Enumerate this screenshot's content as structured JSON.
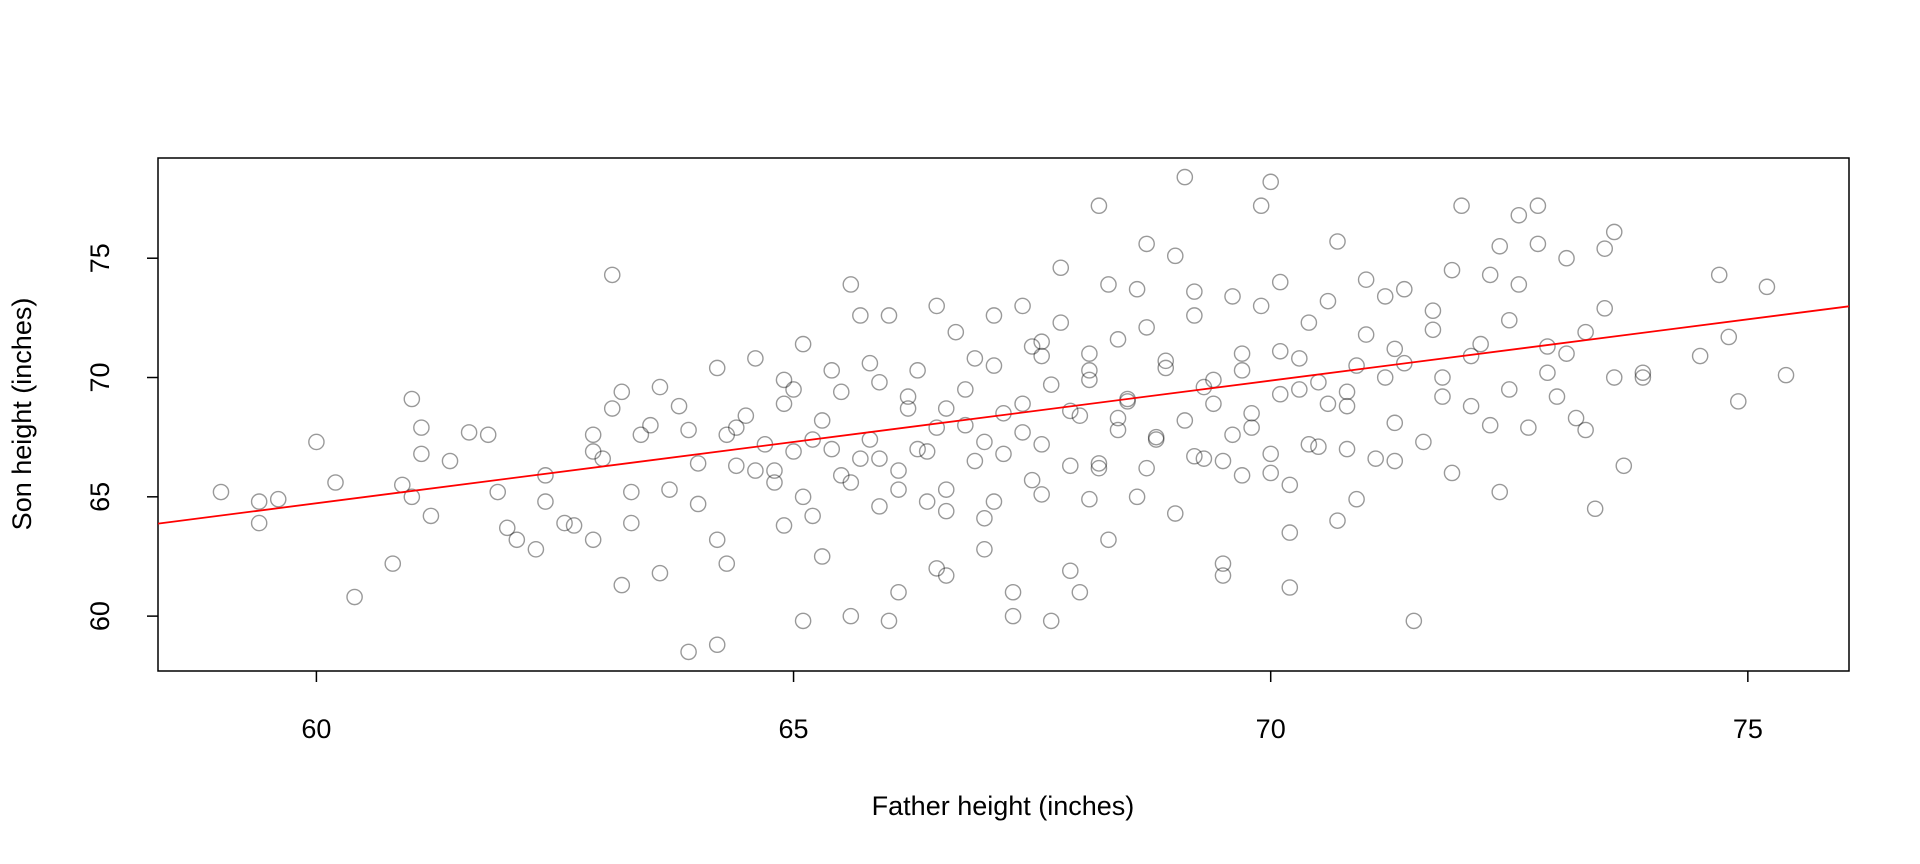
{
  "chart_data": {
    "type": "scatter",
    "x_label": "Father height (inches)",
    "y_label": "Son height (inches)",
    "x": [
      59.0,
      59.4,
      59.4,
      59.6,
      60.0,
      60.2,
      60.4,
      60.8,
      60.9,
      61.0,
      61.0,
      61.1,
      61.1,
      61.2,
      61.4,
      61.6,
      61.8,
      61.9,
      62.0,
      62.1,
      62.3,
      62.4,
      62.4,
      62.6,
      62.7,
      62.9,
      62.9,
      62.9,
      63.0,
      63.1,
      63.2,
      63.2,
      63.3,
      63.3,
      63.4,
      63.5,
      63.6,
      63.6,
      63.7,
      63.1,
      63.8,
      63.9,
      64.0,
      64.0,
      64.2,
      64.2,
      64.2,
      64.3,
      64.4,
      64.5,
      64.6,
      64.7,
      64.8,
      64.9,
      64.9,
      65.0,
      65.1,
      65.2,
      65.3,
      65.4,
      65.5,
      65.5,
      65.6,
      65.7,
      65.8,
      65.9,
      65.9,
      66.0,
      66.1,
      66.2,
      66.3,
      66.4,
      66.5,
      66.5,
      66.6,
      66.7,
      66.8,
      66.9,
      67.0,
      67.0,
      67.1,
      67.2,
      67.3,
      67.4,
      67.5,
      67.5,
      67.6,
      67.7,
      67.8,
      67.9,
      68.0,
      68.0,
      68.1,
      68.2,
      68.3,
      68.4,
      68.4,
      68.5,
      68.6,
      68.7,
      68.8,
      68.9,
      69.0,
      69.1,
      69.2,
      69.3,
      69.4,
      69.5,
      69.6,
      69.7,
      69.8,
      69.9,
      70.0,
      70.1,
      70.2,
      70.3,
      70.4,
      70.5,
      70.6,
      70.7,
      70.8,
      70.9,
      71.0,
      71.1,
      71.2,
      71.3,
      71.4,
      71.5,
      71.6,
      71.7,
      71.8,
      71.9,
      72.0,
      72.1,
      72.2,
      72.3,
      72.4,
      72.5,
      72.6,
      72.7,
      72.8,
      72.9,
      73.0,
      73.1,
      73.2,
      73.3,
      73.4,
      73.5,
      73.6,
      73.7,
      69.1,
      70.0,
      69.9,
      68.2,
      72.8,
      72.6,
      73.5,
      73.6,
      74.7,
      75.2,
      74.5,
      74.8,
      74.9,
      75.4,
      73.9,
      73.9,
      73.3,
      73.1,
      70.2,
      69.5,
      67.3,
      67.7,
      67.9,
      64.3,
      63.9,
      65.1,
      65.6,
      66.1,
      66.6,
      67.0,
      65.0,
      65.3,
      65.8,
      66.2,
      66.6,
      67.2,
      67.6,
      68.1,
      68.5,
      68.9,
      69.3,
      69.7,
      70.1,
      70.5,
      70.9,
      71.3,
      71.7,
      72.1,
      72.5,
      72.9,
      64.8,
      65.2,
      65.7,
      66.3,
      66.8,
      67.4,
      67.9,
      68.4,
      68.8,
      69.4,
      69.8,
      70.3,
      70.8,
      71.2,
      71.8,
      72.3,
      64.4,
      64.9,
      65.4,
      65.9,
      66.4,
      66.9,
      67.4,
      67.8,
      68.3,
      68.7,
      69.2,
      69.6,
      70.1,
      70.6,
      71.0,
      71.4,
      71.9,
      72.4,
      66.0,
      66.5,
      67.1,
      67.6,
      68.1,
      68.6,
      69.0,
      69.5,
      70.0,
      70.4,
      70.8,
      71.3,
      68.2,
      68.7,
      69.2,
      69.7,
      70.2,
      70.7,
      65.6,
      66.1,
      66.6,
      67.1,
      67.6,
      68.1,
      64.6,
      65.1
    ],
    "values": [
      65.2,
      64.8,
      63.9,
      64.9,
      67.3,
      65.6,
      60.8,
      62.2,
      65.5,
      69.1,
      65.0,
      67.9,
      66.8,
      64.2,
      66.5,
      67.7,
      67.6,
      65.2,
      63.7,
      63.2,
      62.8,
      65.9,
      64.8,
      63.9,
      63.8,
      67.6,
      66.9,
      63.2,
      66.6,
      68.7,
      69.4,
      61.3,
      65.2,
      63.9,
      67.6,
      68.0,
      69.6,
      61.8,
      65.3,
      74.3,
      68.8,
      67.8,
      66.4,
      64.7,
      70.4,
      63.2,
      58.8,
      67.6,
      66.3,
      68.4,
      70.8,
      67.2,
      65.6,
      63.8,
      68.9,
      66.9,
      71.4,
      64.2,
      62.5,
      67.0,
      69.4,
      65.9,
      73.9,
      72.6,
      67.4,
      64.6,
      69.8,
      59.8,
      66.1,
      68.7,
      70.3,
      64.8,
      62.0,
      67.9,
      65.3,
      71.9,
      69.5,
      66.5,
      67.3,
      64.1,
      70.5,
      66.8,
      60.0,
      68.9,
      71.3,
      65.7,
      67.2,
      69.7,
      74.6,
      66.3,
      68.4,
      61.0,
      70.3,
      66.2,
      63.2,
      71.6,
      67.8,
      69.0,
      65.0,
      72.1,
      67.5,
      70.7,
      64.3,
      68.2,
      72.6,
      66.6,
      69.9,
      61.7,
      67.6,
      71.0,
      68.5,
      73.0,
      66.0,
      69.3,
      63.5,
      70.8,
      72.3,
      67.1,
      68.9,
      75.7,
      69.4,
      64.9,
      71.8,
      66.6,
      73.4,
      68.1,
      70.6,
      59.8,
      67.3,
      72.8,
      70.0,
      66.0,
      77.2,
      68.8,
      71.4,
      74.3,
      65.2,
      69.5,
      73.9,
      67.9,
      75.6,
      70.2,
      69.2,
      75.0,
      68.3,
      71.9,
      64.5,
      72.9,
      70.0,
      66.3,
      78.4,
      78.2,
      77.2,
      77.2,
      77.2,
      76.8,
      75.4,
      76.1,
      74.3,
      73.8,
      70.9,
      71.7,
      69.0,
      70.1,
      70.2,
      70.0,
      67.8,
      71.0,
      61.2,
      62.2,
      61.0,
      59.8,
      61.9,
      62.2,
      58.5,
      59.8,
      60.0,
      61.0,
      61.7,
      62.8,
      69.5,
      68.2,
      70.6,
      69.2,
      68.7,
      68.5,
      70.9,
      69.9,
      69.1,
      70.4,
      69.6,
      70.3,
      71.1,
      69.8,
      70.5,
      71.2,
      72.0,
      70.9,
      72.4,
      71.3,
      66.1,
      67.4,
      66.6,
      67.0,
      68.0,
      67.7,
      68.6,
      68.3,
      67.4,
      68.9,
      67.9,
      69.5,
      68.8,
      70.0,
      69.2,
      68.0,
      67.9,
      69.9,
      70.3,
      66.6,
      66.9,
      70.8,
      73.0,
      72.3,
      73.9,
      75.6,
      73.6,
      73.4,
      74.0,
      73.2,
      74.1,
      73.7,
      74.5,
      75.5,
      72.6,
      73.0,
      72.6,
      71.5,
      71.0,
      73.7,
      75.1,
      66.5,
      66.8,
      67.2,
      67.0,
      66.5,
      66.4,
      66.2,
      66.7,
      65.9,
      65.5,
      64.0,
      65.6,
      65.3,
      64.4,
      64.8,
      65.1,
      64.9,
      66.1,
      65.0
    ],
    "color": "#000000",
    "opacity": 0.4,
    "xlim": [
      58.34,
      76.06
    ],
    "ylim": [
      57.7,
      79.2
    ],
    "xticks": [
      60,
      65,
      70,
      75
    ],
    "yticks": [
      60,
      65,
      70,
      75
    ],
    "fit_line": {
      "intercept": 33.89,
      "slope": 0.514,
      "color": "#ff0000"
    }
  }
}
